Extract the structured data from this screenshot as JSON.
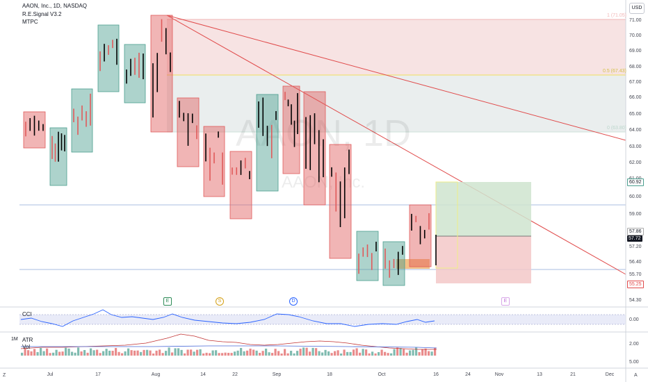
{
  "header": {
    "symbol_line": "AAON, Inc., 1D, NASDAQ",
    "indicator_1": "R.E.Signal V3.2",
    "indicator_2": "MTPC"
  },
  "currency_button": "USD",
  "watermark": {
    "ticker": "AAON, 1D",
    "name": "AAON, Inc."
  },
  "price_axis": {
    "ticks": [
      "71.00",
      "70.00",
      "69.00",
      "68.00",
      "67.00",
      "66.00",
      "65.00",
      "64.00",
      "63.00",
      "62.00",
      "61.00",
      "60.00",
      "59.00",
      "58.00",
      "57.20",
      "56.40",
      "55.70",
      "54.30"
    ],
    "badges": {
      "upper": "60.92",
      "last": "57.86",
      "close": "57.72",
      "lower": "55.25"
    }
  },
  "fib_labels": {
    "top": "1 (71.05)",
    "mid": "0.5 (67.43)",
    "low": "0 (63.80)"
  },
  "events": {
    "e1": "E",
    "s": "S",
    "d": "D",
    "e2": "E"
  },
  "cci_pane": {
    "label": "CCI",
    "tick": "0.00"
  },
  "atr_pane": {
    "label_1m": "1M",
    "label_atr": "ATR",
    "label_vol": "Vol",
    "ticks": [
      "2.00",
      "5.00"
    ]
  },
  "time_axis": {
    "left_icon": "Z",
    "right_icon": "A",
    "labels": [
      "Jul",
      "17",
      "Aug",
      "14",
      "22",
      "Sep",
      "18",
      "Oct",
      "16",
      "24",
      "Nov",
      "13",
      "21",
      "Dec"
    ]
  },
  "colors": {
    "bull": "#4a9e8e",
    "bear": "#e05a5a",
    "trend": "#e04a4a",
    "fib_mid": "#f0e27a",
    "channel": "#8ea8d8",
    "long_target": "#cfe4cf",
    "short_stop": "#f3c8c8"
  }
}
